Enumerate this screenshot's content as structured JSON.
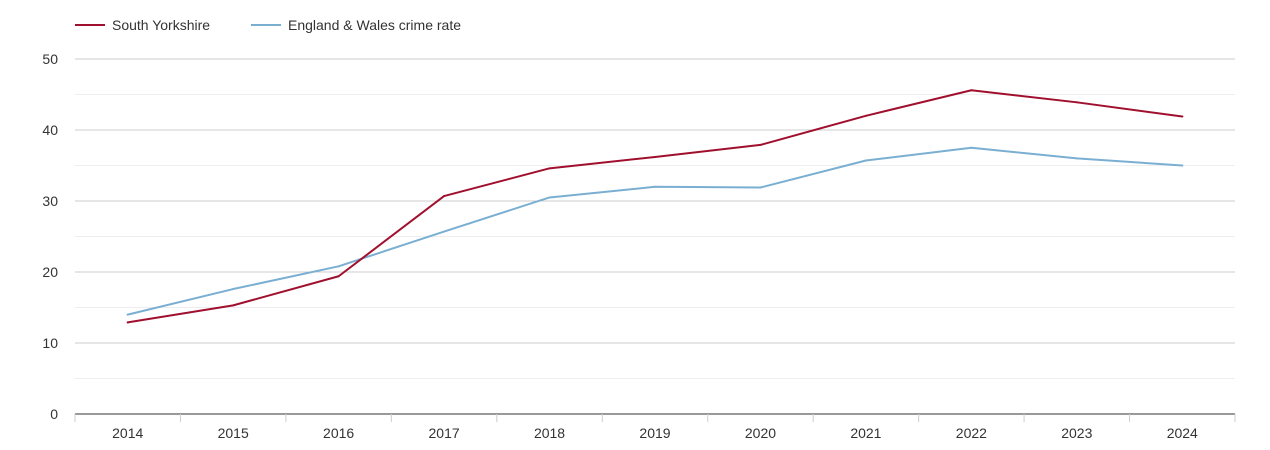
{
  "chart_data": {
    "type": "line",
    "title": "",
    "xlabel": "",
    "ylabel": "",
    "x": [
      "2014",
      "2015",
      "2016",
      "2017",
      "2018",
      "2019",
      "2020",
      "2021",
      "2022",
      "2023",
      "2024"
    ],
    "ylim": [
      0,
      50
    ],
    "yticks": [
      "0",
      "10",
      "20",
      "30",
      "40",
      "50"
    ],
    "grid": true,
    "legend_position": "top-left",
    "series": [
      {
        "name": "South Yorkshire",
        "color": "#a0102e",
        "values": [
          12.9,
          15.3,
          19.4,
          30.7,
          34.6,
          36.2,
          37.9,
          42.0,
          45.6,
          43.9,
          41.9
        ]
      },
      {
        "name": "England & Wales crime rate",
        "color": "#7aafd2",
        "values": [
          14.0,
          17.6,
          20.8,
          25.7,
          30.5,
          32.0,
          31.9,
          35.7,
          37.5,
          36.0,
          35.0
        ]
      }
    ]
  }
}
